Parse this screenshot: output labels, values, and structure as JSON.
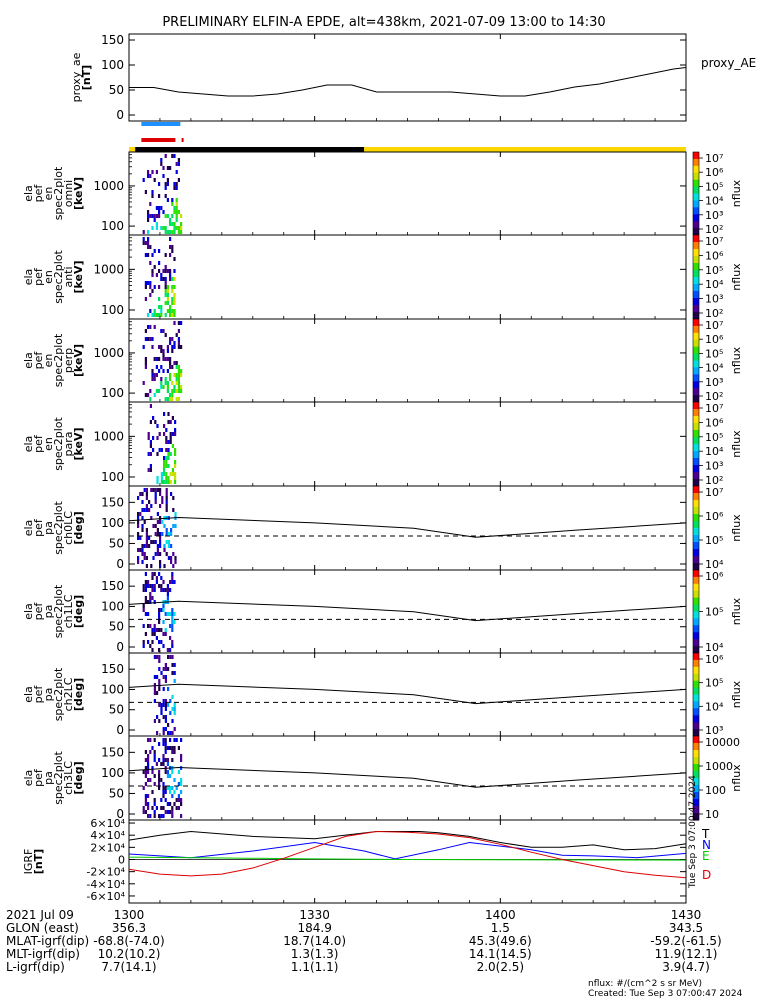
{
  "title": "PRELIMINARY ELFIN-A EPDE, alt=438km, 2021-07-09 13:00 to 14:30",
  "time_start_min": 0,
  "time_end_min": 90,
  "chart_data": [
    {
      "type": "line",
      "name": "proxy_ae",
      "ylabel": [
        "proxy_ae",
        "[nT]"
      ],
      "legend": "proxy_AE",
      "ylim": [
        0,
        150
      ],
      "yticks": [
        "0",
        "50",
        "100",
        "150"
      ],
      "x": [
        0,
        4,
        8,
        12,
        16,
        20,
        24,
        28,
        32,
        36,
        40,
        44,
        48,
        52,
        56,
        60,
        64,
        68,
        72,
        76,
        80,
        84,
        88,
        90
      ],
      "y": [
        55,
        55,
        46,
        42,
        38,
        38,
        42,
        50,
        60,
        60,
        46,
        46,
        46,
        46,
        42,
        38,
        38,
        46,
        56,
        62,
        72,
        82,
        92,
        95
      ]
    },
    {
      "type": "bar",
      "name": "orbit-indicator",
      "segments": [
        {
          "color": "#ffd700",
          "from": 0,
          "to": 1
        },
        {
          "color": "#000000",
          "from": 1,
          "to": 38
        },
        {
          "color": "#ffd700",
          "from": 38,
          "to": 90
        }
      ],
      "markers": [
        {
          "color": "#1e90ff",
          "from": 2.0,
          "to": 8.3
        },
        {
          "color": "#dd0000",
          "from": 2.0,
          "to": 7.5
        },
        {
          "color": "#dd0000",
          "from": 8.5,
          "to": 8.6
        }
      ]
    },
    {
      "type": "heatmap",
      "name": "omni",
      "ylabel": [
        "ela",
        "pef",
        "en",
        "spec2plot",
        "omni",
        "[keV]"
      ],
      "yscale": "log",
      "ylim": [
        60,
        7000
      ],
      "yticks": [
        "100",
        "1000"
      ],
      "zlabel": "nflux",
      "zticks": [
        "10²",
        "10³",
        "10⁴",
        "10⁵",
        "10⁶",
        "10⁷"
      ],
      "activity": [
        2.2,
        8.6
      ]
    },
    {
      "type": "heatmap",
      "name": "anti",
      "ylabel": [
        "ela",
        "pef",
        "en",
        "spec2plot",
        "anti",
        "[keV]"
      ],
      "yscale": "log",
      "ylim": [
        60,
        7000
      ],
      "yticks": [
        "100",
        "1000"
      ],
      "zlabel": "nflux",
      "zticks": [
        "10²",
        "10³",
        "10⁴",
        "10⁵",
        "10⁶",
        "10⁷"
      ],
      "activity": [
        2.2,
        7.6
      ]
    },
    {
      "type": "heatmap",
      "name": "perp",
      "ylabel": [
        "ela",
        "pef",
        "en",
        "spec2plot",
        "perp",
        "[keV]"
      ],
      "yscale": "log",
      "ylim": [
        60,
        7000
      ],
      "yticks": [
        "100",
        "1000"
      ],
      "zlabel": "nflux",
      "zticks": [
        "10²",
        "10³",
        "10⁴",
        "10⁵",
        "10⁶",
        "10⁷"
      ],
      "activity": [
        2.2,
        8.6
      ]
    },
    {
      "type": "heatmap",
      "name": "para",
      "ylabel": [
        "ela",
        "pef",
        "en",
        "spec2plot",
        "para",
        "[keV]"
      ],
      "yscale": "log",
      "ylim": [
        60,
        7000
      ],
      "yticks": [
        "100",
        "1000"
      ],
      "zlabel": "nflux",
      "zticks": [
        "10²",
        "10³",
        "10⁴",
        "10⁵",
        "10⁶",
        "10⁷"
      ],
      "activity": [
        3.0,
        7.6
      ]
    },
    {
      "type": "heatmap",
      "name": "ch0LC",
      "ylabel": [
        "ela",
        "pef",
        "pa",
        "spec2plot",
        "ch0LC",
        "[deg]"
      ],
      "ylim": [
        0,
        180
      ],
      "yticks": [
        "0",
        "50",
        "100",
        "150"
      ],
      "zlabel": "nflux",
      "zticks": [
        "10⁴",
        "10⁵",
        "10⁶",
        "10⁷"
      ],
      "activity": [
        1.3,
        7.6
      ],
      "lc_solid": [
        [
          0,
          105
        ],
        [
          8,
          113
        ],
        [
          30,
          100
        ],
        [
          46,
          87
        ],
        [
          56,
          65
        ],
        [
          72,
          82
        ],
        [
          90,
          100
        ]
      ],
      "lc_dashed": 68
    },
    {
      "type": "heatmap",
      "name": "ch1LC",
      "ylabel": [
        "ela",
        "pef",
        "pa",
        "spec2plot",
        "ch1LC",
        "[deg]"
      ],
      "ylim": [
        0,
        180
      ],
      "yticks": [
        "0",
        "50",
        "100",
        "150"
      ],
      "zlabel": "nflux",
      "zticks": [
        "10⁴",
        "10⁵",
        "10⁶"
      ],
      "activity": [
        2.2,
        7.6
      ],
      "lc_solid": [
        [
          0,
          105
        ],
        [
          8,
          113
        ],
        [
          30,
          100
        ],
        [
          46,
          87
        ],
        [
          56,
          65
        ],
        [
          72,
          82
        ],
        [
          90,
          100
        ]
      ],
      "lc_dashed": 68
    },
    {
      "type": "heatmap",
      "name": "ch2LC",
      "ylabel": [
        "ela",
        "pef",
        "pa",
        "spec2plot",
        "ch2LC",
        "[deg]"
      ],
      "ylim": [
        0,
        180
      ],
      "yticks": [
        "0",
        "50",
        "100",
        "150"
      ],
      "zlabel": "nflux",
      "zticks": [
        "10³",
        "10⁴",
        "10⁵",
        "10⁶"
      ],
      "activity": [
        4.0,
        7.6
      ],
      "lc_solid": [
        [
          0,
          105
        ],
        [
          8,
          113
        ],
        [
          30,
          100
        ],
        [
          46,
          87
        ],
        [
          56,
          65
        ],
        [
          72,
          82
        ],
        [
          90,
          100
        ]
      ],
      "lc_dashed": 68
    },
    {
      "type": "heatmap",
      "name": "ch3LC",
      "ylabel": [
        "ela",
        "pef",
        "pa",
        "spec2plot",
        "ch3LC",
        "[deg]"
      ],
      "ylim": [
        0,
        180
      ],
      "yticks": [
        "0",
        "50",
        "100",
        "150"
      ],
      "zlabel": "nflux",
      "zticks": [
        "10",
        "100",
        "1000",
        "10000"
      ],
      "activity": [
        2.2,
        8.6
      ],
      "lc_solid": [
        [
          0,
          105
        ],
        [
          8,
          113
        ],
        [
          30,
          100
        ],
        [
          46,
          87
        ],
        [
          56,
          65
        ],
        [
          72,
          82
        ],
        [
          90,
          100
        ]
      ],
      "lc_dashed": 68
    },
    {
      "type": "line",
      "name": "igrf",
      "ylabel": [
        "IGRF",
        "[nT]"
      ],
      "ylim": [
        -65000,
        65000
      ],
      "yticks": [
        "-6×10⁴",
        "-4×10⁴",
        "-2×10⁴",
        "0",
        "2×10⁴",
        "4×10⁴",
        "6×10⁴"
      ],
      "series": [
        {
          "name": "T",
          "color": "#000000",
          "x": [
            0,
            5,
            10,
            20,
            30,
            40,
            47,
            50,
            55,
            60,
            65,
            70,
            75,
            80,
            85,
            90
          ],
          "y": [
            32000,
            40000,
            46000,
            38000,
            34000,
            46000,
            46000,
            44000,
            38000,
            28000,
            20000,
            20000,
            24000,
            16000,
            18000,
            26000
          ]
        },
        {
          "name": "N",
          "color": "#0000ff",
          "x": [
            0,
            10,
            20,
            30,
            38,
            43,
            50,
            55,
            65,
            70,
            75,
            82,
            90
          ],
          "y": [
            9000,
            3000,
            14000,
            28000,
            14000,
            1000,
            16000,
            28000,
            16000,
            7000,
            6000,
            3000,
            10000
          ]
        },
        {
          "name": "E",
          "color": "#00cc00",
          "x": [
            0,
            15,
            30,
            45,
            60,
            75,
            90
          ],
          "y": [
            4000,
            2500,
            1000,
            0,
            -400,
            -800,
            -1000
          ]
        },
        {
          "name": "D",
          "color": "#dd0000",
          "x": [
            0,
            5,
            10,
            15,
            20,
            25,
            30,
            35,
            40,
            45,
            50,
            55,
            60,
            65,
            70,
            75,
            80,
            85,
            90
          ],
          "y": [
            -16000,
            -24000,
            -27000,
            -24000,
            -14000,
            2000,
            20000,
            38000,
            46000,
            45000,
            42000,
            36000,
            25000,
            12000,
            0,
            -10000,
            -20000,
            -26000,
            -30000
          ]
        }
      ]
    }
  ],
  "x_axis": {
    "ticks": [
      "1300",
      "1330",
      "1400",
      "1430"
    ],
    "rows": [
      {
        "label": "2021 Jul 09",
        "values": [
          "",
          "",
          "",
          ""
        ]
      },
      {
        "label": "GLON (east)",
        "values": [
          "356.3",
          "184.9",
          "1.5",
          "343.5"
        ]
      },
      {
        "label": "MLAT-igrf(dip)",
        "values": [
          "-68.8(-74.0)",
          "18.7(14.0)",
          "45.3(49.6)",
          "-59.2(-61.5)"
        ]
      },
      {
        "label": "MLT-igrf(dip)",
        "values": [
          "10.2(10.2)",
          "1.3(1.3)",
          "14.1(14.5)",
          "11.9(12.1)"
        ]
      },
      {
        "label": "L-igrf(dip)",
        "values": [
          "7.7(14.1)",
          "1.1(1.1)",
          "2.0(2.5)",
          "3.9(4.7)"
        ]
      }
    ]
  },
  "footer": {
    "units": "nflux: #/(cm^2 s sr MeV)",
    "created": "Created: Tue Sep  3 07:00:47 2024",
    "stamp": "Tue Sep  3 07:00:47 2024"
  }
}
